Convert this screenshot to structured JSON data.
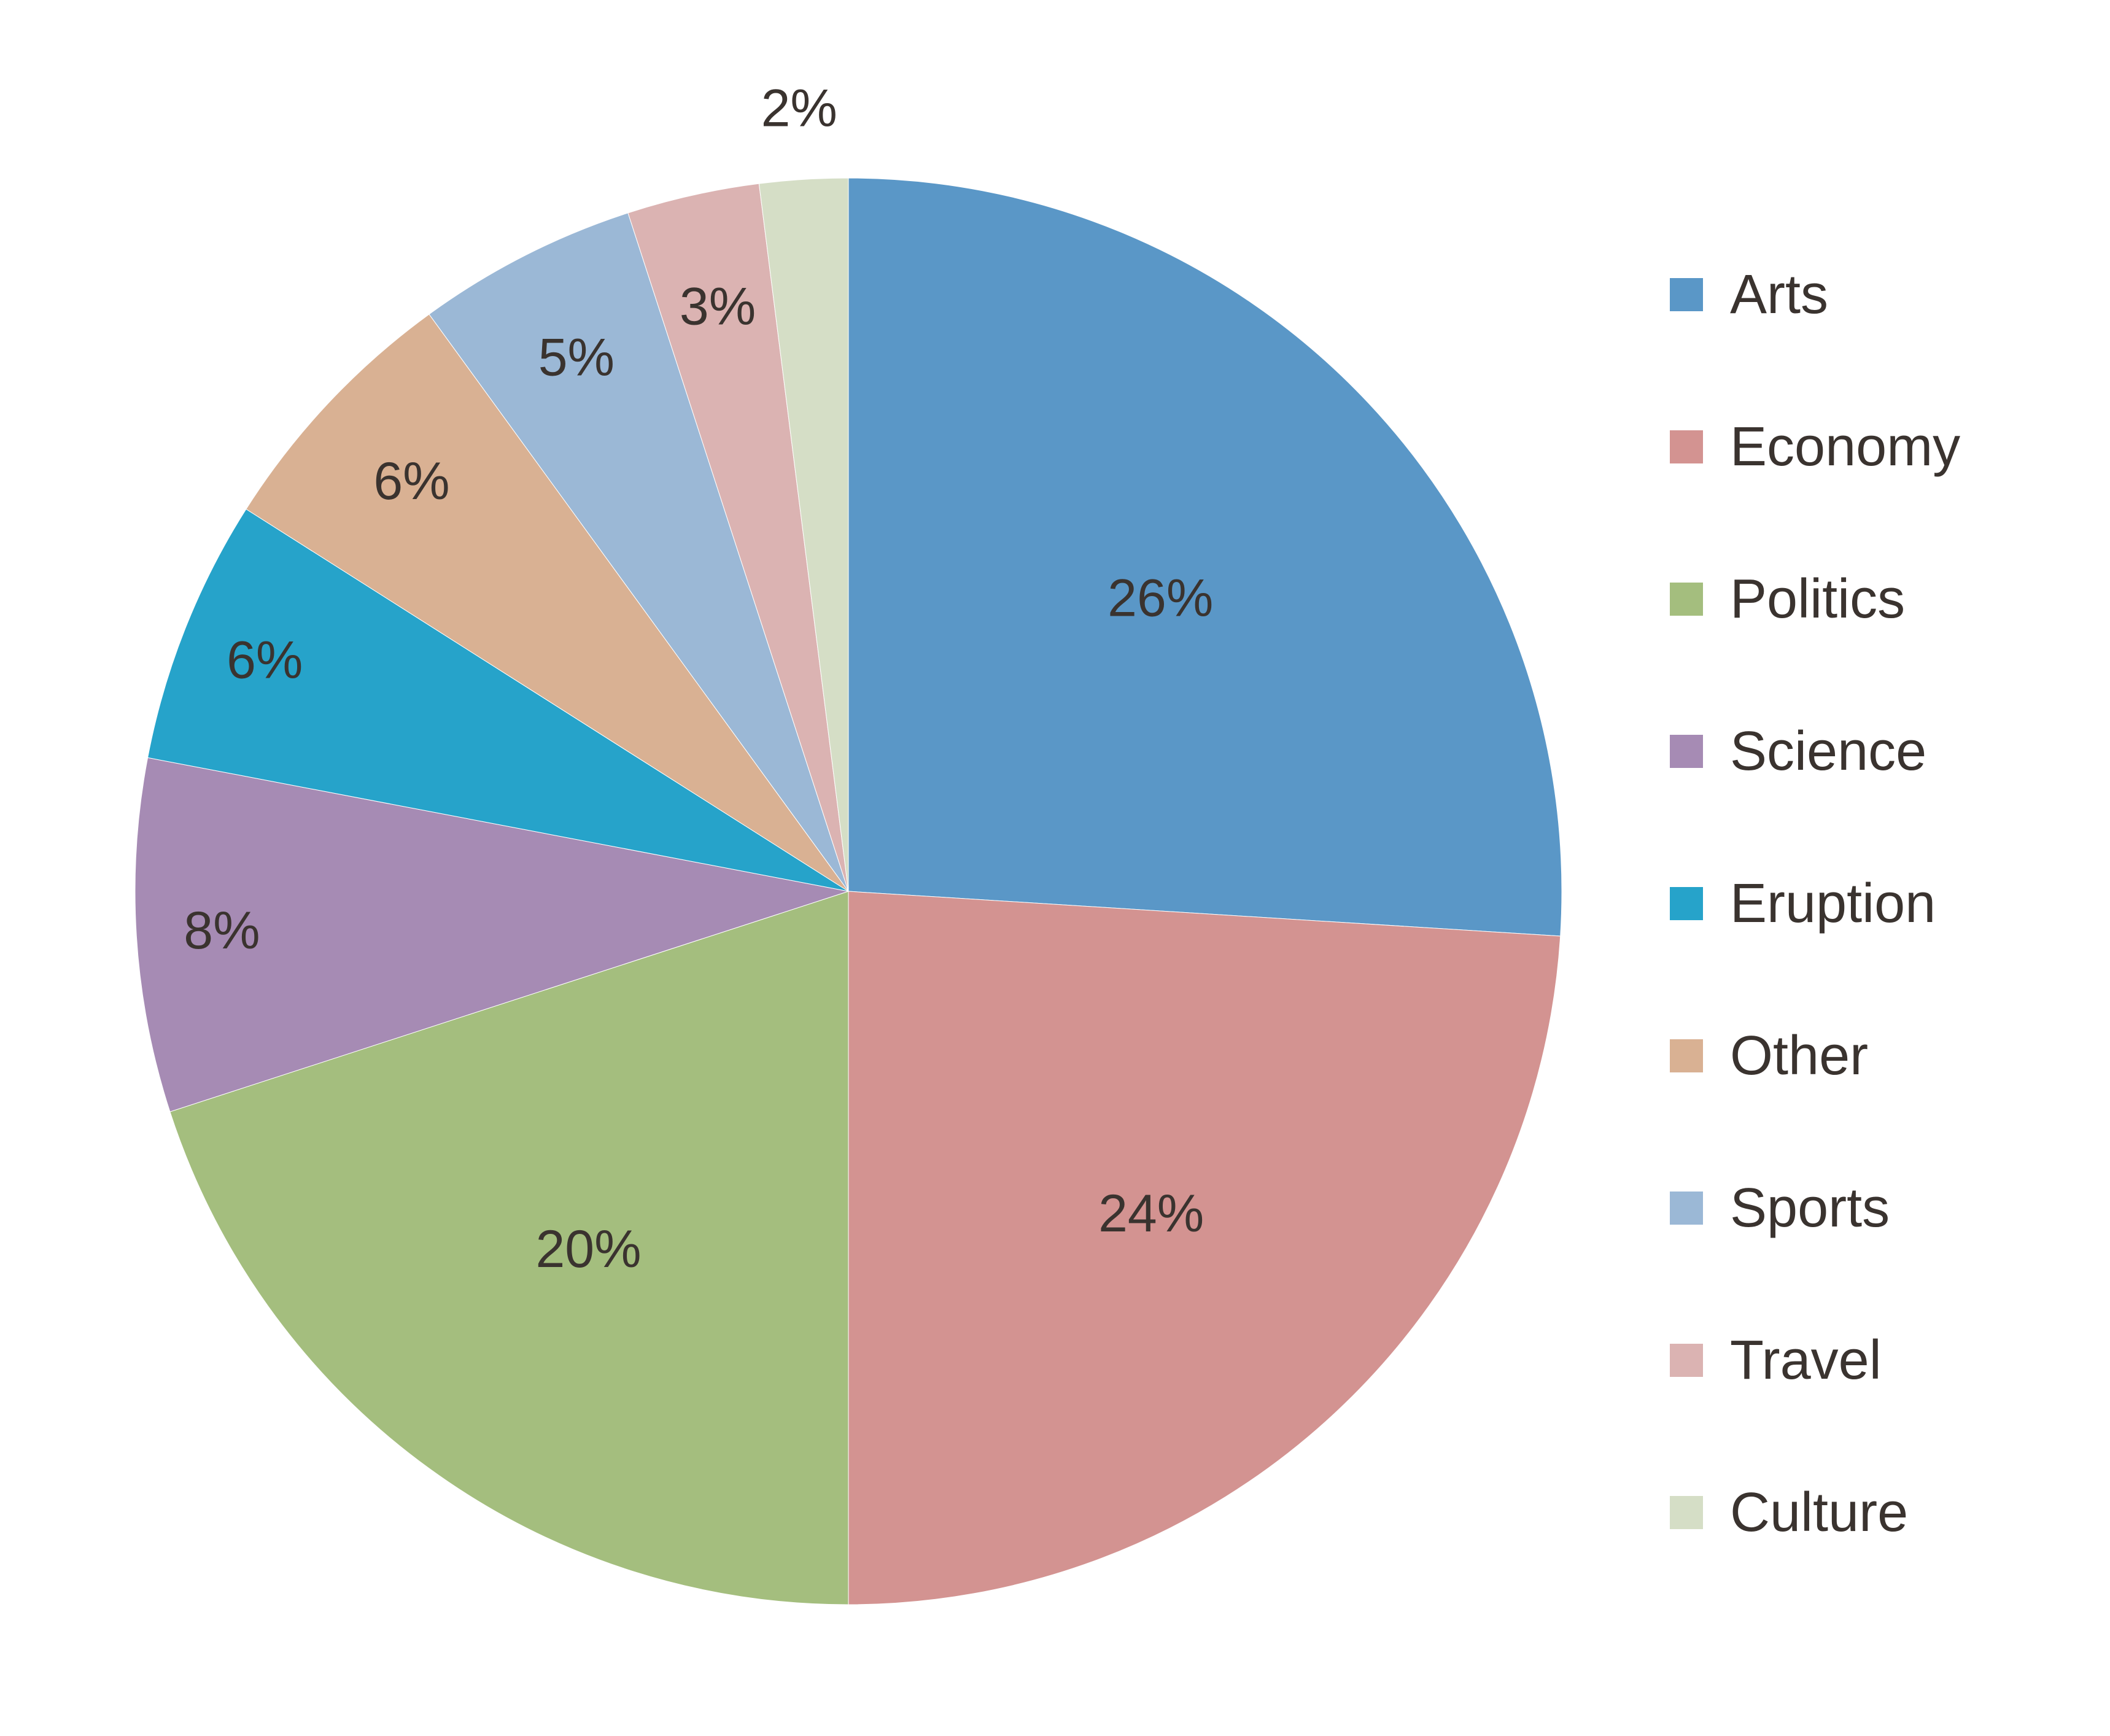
{
  "chart_data": {
    "type": "pie",
    "title": "",
    "categories": [
      "Arts",
      "Economy",
      "Politics",
      "Science",
      "Eruption",
      "Other",
      "Sports",
      "Travel",
      "Culture"
    ],
    "values": [
      26,
      24,
      20,
      8,
      6,
      6,
      5,
      3,
      2
    ],
    "value_labels": [
      "26%",
      "24%",
      "20%",
      "8%",
      "6%",
      "6%",
      "5%",
      "3%",
      "2%"
    ],
    "colors": [
      "#5A97C7",
      "#D39391",
      "#A4BE7E",
      "#A68BB4",
      "#26A3CA",
      "#D9B193",
      "#9BB8D6",
      "#DBB3B2",
      "#D5DEC6"
    ],
    "start_angle_deg": 0,
    "direction": "clockwise",
    "legend": {
      "placement": "right",
      "entries": [
        "Arts",
        "Economy",
        "Politics",
        "Science",
        "Eruption",
        "Other",
        "Sports",
        "Travel",
        "Culture"
      ]
    },
    "label_text_color": "#3A332F",
    "arts_label_color": "#1F2C44"
  }
}
